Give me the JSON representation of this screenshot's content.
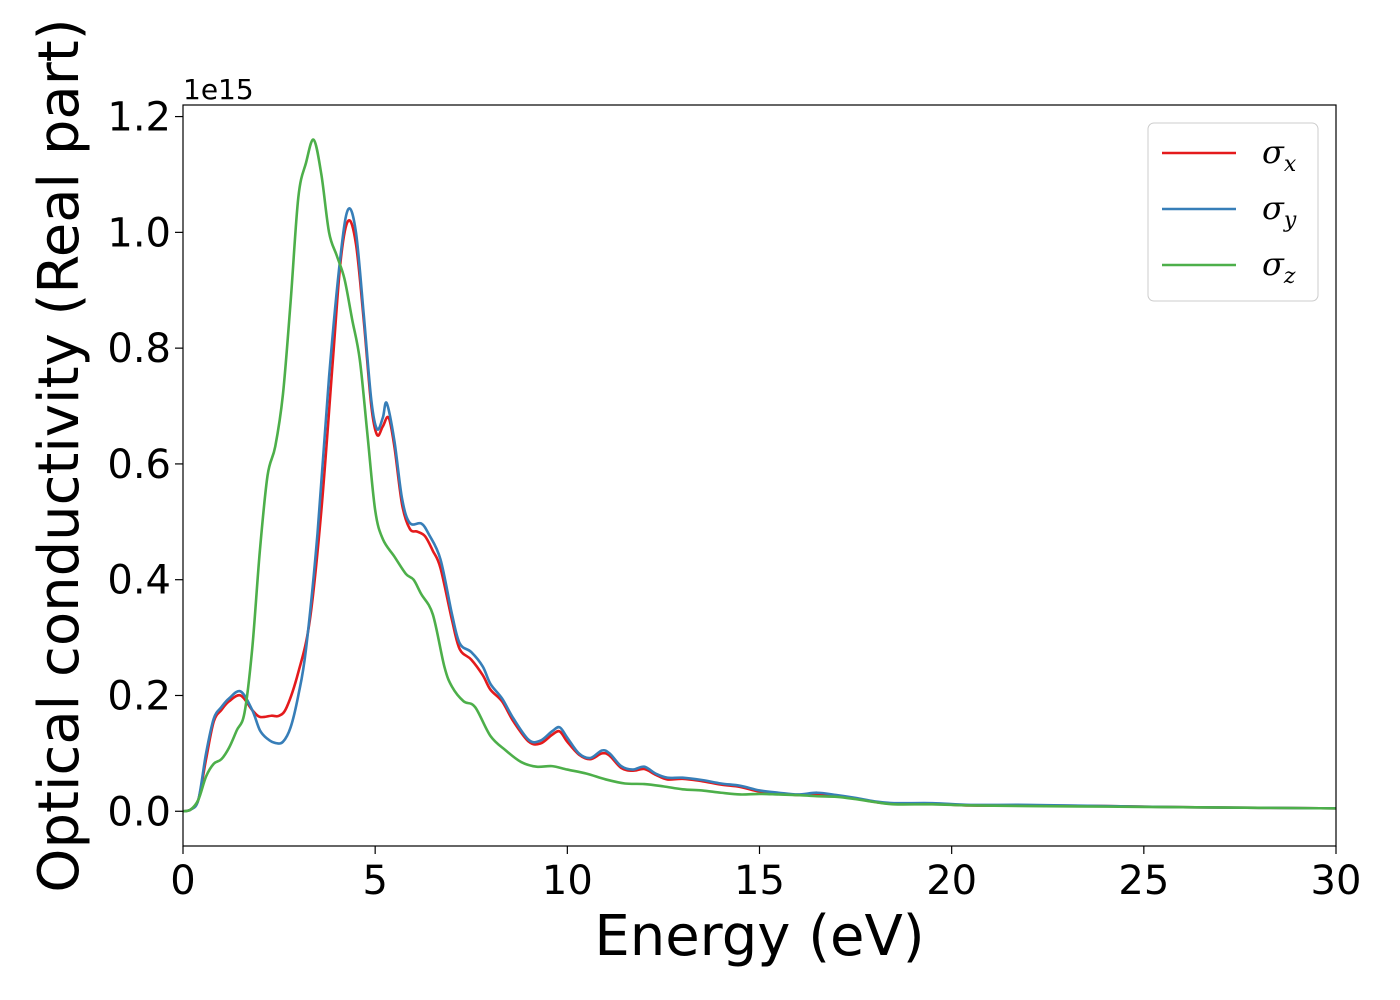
{
  "chart_data": {
    "type": "line",
    "xlabel": "Energy (eV)",
    "ylabel": "Optical conductivity (Real part)",
    "y_offset_text": "1e15",
    "y_scale": 1000000000000000.0,
    "xlim": [
      0,
      30
    ],
    "ylim": [
      -0.06,
      1.22
    ],
    "x_ticks": [
      0,
      5,
      10,
      15,
      20,
      25,
      30
    ],
    "x_tick_labels": [
      "0",
      "5",
      "10",
      "15",
      "20",
      "25",
      "30"
    ],
    "y_ticks": [
      0.0,
      0.2,
      0.4,
      0.6,
      0.8,
      1.0,
      1.2
    ],
    "y_tick_labels": [
      "0.0",
      "0.2",
      "0.4",
      "0.6",
      "0.8",
      "1.0",
      "1.2"
    ],
    "grid": false,
    "legend_position": "top-right",
    "series": [
      {
        "name": "σx",
        "symbol": "σ",
        "subscript": "x",
        "color": "#e41a1c",
        "points": [
          [
            0,
            0
          ],
          [
            0.2,
            0.003
          ],
          [
            0.4,
            0.02
          ],
          [
            0.6,
            0.09
          ],
          [
            0.8,
            0.155
          ],
          [
            1.0,
            0.175
          ],
          [
            1.2,
            0.19
          ],
          [
            1.5,
            0.2
          ],
          [
            1.8,
            0.175
          ],
          [
            2.0,
            0.163
          ],
          [
            2.3,
            0.165
          ],
          [
            2.5,
            0.165
          ],
          [
            2.7,
            0.18
          ],
          [
            3.0,
            0.24
          ],
          [
            3.3,
            0.33
          ],
          [
            3.6,
            0.52
          ],
          [
            3.9,
            0.78
          ],
          [
            4.1,
            0.95
          ],
          [
            4.3,
            1.02
          ],
          [
            4.5,
            0.98
          ],
          [
            4.7,
            0.85
          ],
          [
            4.9,
            0.7
          ],
          [
            5.05,
            0.65
          ],
          [
            5.2,
            0.665
          ],
          [
            5.35,
            0.68
          ],
          [
            5.5,
            0.63
          ],
          [
            5.7,
            0.53
          ],
          [
            5.9,
            0.488
          ],
          [
            6.1,
            0.483
          ],
          [
            6.3,
            0.475
          ],
          [
            6.5,
            0.45
          ],
          [
            6.7,
            0.42
          ],
          [
            7.0,
            0.33
          ],
          [
            7.2,
            0.28
          ],
          [
            7.5,
            0.262
          ],
          [
            7.8,
            0.235
          ],
          [
            8.0,
            0.21
          ],
          [
            8.3,
            0.19
          ],
          [
            8.6,
            0.155
          ],
          [
            9.0,
            0.12
          ],
          [
            9.3,
            0.117
          ],
          [
            9.6,
            0.132
          ],
          [
            9.8,
            0.138
          ],
          [
            10.0,
            0.12
          ],
          [
            10.3,
            0.098
          ],
          [
            10.6,
            0.09
          ],
          [
            10.9,
            0.1
          ],
          [
            11.1,
            0.096
          ],
          [
            11.4,
            0.075
          ],
          [
            11.7,
            0.07
          ],
          [
            12.0,
            0.073
          ],
          [
            12.3,
            0.063
          ],
          [
            12.6,
            0.055
          ],
          [
            13.0,
            0.056
          ],
          [
            13.5,
            0.052
          ],
          [
            14.0,
            0.046
          ],
          [
            14.5,
            0.042
          ],
          [
            15.0,
            0.034
          ],
          [
            15.5,
            0.031
          ],
          [
            16.0,
            0.028
          ],
          [
            16.5,
            0.03
          ],
          [
            17.0,
            0.027
          ],
          [
            17.5,
            0.022
          ],
          [
            18.0,
            0.016
          ],
          [
            18.5,
            0.013
          ],
          [
            19.5,
            0.013
          ],
          [
            20.5,
            0.01
          ],
          [
            22.0,
            0.01
          ],
          [
            24.0,
            0.009
          ],
          [
            26.0,
            0.007
          ],
          [
            28.0,
            0.006
          ],
          [
            30.0,
            0.005
          ]
        ]
      },
      {
        "name": "σy",
        "symbol": "σ",
        "subscript": "y",
        "color": "#377eb8",
        "points": [
          [
            0,
            0
          ],
          [
            0.2,
            0.003
          ],
          [
            0.4,
            0.02
          ],
          [
            0.6,
            0.1
          ],
          [
            0.8,
            0.16
          ],
          [
            1.0,
            0.18
          ],
          [
            1.2,
            0.195
          ],
          [
            1.5,
            0.207
          ],
          [
            1.8,
            0.175
          ],
          [
            2.0,
            0.14
          ],
          [
            2.2,
            0.125
          ],
          [
            2.4,
            0.118
          ],
          [
            2.6,
            0.12
          ],
          [
            2.8,
            0.145
          ],
          [
            3.0,
            0.2
          ],
          [
            3.2,
            0.28
          ],
          [
            3.5,
            0.48
          ],
          [
            3.8,
            0.75
          ],
          [
            4.1,
            0.96
          ],
          [
            4.3,
            1.04
          ],
          [
            4.5,
            1.0
          ],
          [
            4.7,
            0.86
          ],
          [
            4.9,
            0.71
          ],
          [
            5.05,
            0.66
          ],
          [
            5.2,
            0.68
          ],
          [
            5.3,
            0.705
          ],
          [
            5.5,
            0.64
          ],
          [
            5.7,
            0.54
          ],
          [
            5.9,
            0.498
          ],
          [
            6.2,
            0.497
          ],
          [
            6.4,
            0.478
          ],
          [
            6.7,
            0.435
          ],
          [
            7.0,
            0.34
          ],
          [
            7.2,
            0.29
          ],
          [
            7.5,
            0.275
          ],
          [
            7.8,
            0.25
          ],
          [
            8.0,
            0.22
          ],
          [
            8.3,
            0.195
          ],
          [
            8.6,
            0.16
          ],
          [
            9.0,
            0.123
          ],
          [
            9.3,
            0.122
          ],
          [
            9.6,
            0.138
          ],
          [
            9.8,
            0.145
          ],
          [
            10.0,
            0.127
          ],
          [
            10.3,
            0.1
          ],
          [
            10.6,
            0.092
          ],
          [
            10.9,
            0.105
          ],
          [
            11.1,
            0.1
          ],
          [
            11.4,
            0.078
          ],
          [
            11.7,
            0.072
          ],
          [
            12.0,
            0.077
          ],
          [
            12.3,
            0.065
          ],
          [
            12.6,
            0.058
          ],
          [
            13.0,
            0.058
          ],
          [
            13.5,
            0.054
          ],
          [
            14.0,
            0.048
          ],
          [
            14.5,
            0.044
          ],
          [
            15.0,
            0.036
          ],
          [
            15.5,
            0.032
          ],
          [
            16.0,
            0.029
          ],
          [
            16.5,
            0.032
          ],
          [
            17.0,
            0.028
          ],
          [
            17.5,
            0.023
          ],
          [
            18.0,
            0.017
          ],
          [
            18.5,
            0.014
          ],
          [
            19.5,
            0.014
          ],
          [
            20.5,
            0.011
          ],
          [
            22.0,
            0.011
          ],
          [
            24.0,
            0.009
          ],
          [
            26.0,
            0.007
          ],
          [
            28.0,
            0.006
          ],
          [
            30.0,
            0.005
          ]
        ]
      },
      {
        "name": "σz",
        "symbol": "σ",
        "subscript": "z",
        "color": "#4daf4a",
        "points": [
          [
            0,
            0
          ],
          [
            0.2,
            0.003
          ],
          [
            0.4,
            0.02
          ],
          [
            0.6,
            0.06
          ],
          [
            0.8,
            0.082
          ],
          [
            1.0,
            0.09
          ],
          [
            1.2,
            0.11
          ],
          [
            1.4,
            0.14
          ],
          [
            1.6,
            0.17
          ],
          [
            1.8,
            0.28
          ],
          [
            2.0,
            0.45
          ],
          [
            2.2,
            0.58
          ],
          [
            2.4,
            0.63
          ],
          [
            2.6,
            0.72
          ],
          [
            2.8,
            0.88
          ],
          [
            3.0,
            1.06
          ],
          [
            3.2,
            1.12
          ],
          [
            3.4,
            1.16
          ],
          [
            3.6,
            1.1
          ],
          [
            3.8,
            1.0
          ],
          [
            4.0,
            0.96
          ],
          [
            4.2,
            0.92
          ],
          [
            4.4,
            0.85
          ],
          [
            4.6,
            0.78
          ],
          [
            4.8,
            0.65
          ],
          [
            5.0,
            0.52
          ],
          [
            5.2,
            0.47
          ],
          [
            5.5,
            0.44
          ],
          [
            5.8,
            0.41
          ],
          [
            6.0,
            0.4
          ],
          [
            6.2,
            0.375
          ],
          [
            6.5,
            0.34
          ],
          [
            6.8,
            0.25
          ],
          [
            7.0,
            0.215
          ],
          [
            7.3,
            0.19
          ],
          [
            7.6,
            0.18
          ],
          [
            8.0,
            0.13
          ],
          [
            8.4,
            0.105
          ],
          [
            8.8,
            0.085
          ],
          [
            9.2,
            0.077
          ],
          [
            9.6,
            0.078
          ],
          [
            10.0,
            0.072
          ],
          [
            10.5,
            0.065
          ],
          [
            11.0,
            0.055
          ],
          [
            11.5,
            0.048
          ],
          [
            12.0,
            0.047
          ],
          [
            12.5,
            0.043
          ],
          [
            13.0,
            0.038
          ],
          [
            13.5,
            0.036
          ],
          [
            14.0,
            0.032
          ],
          [
            14.5,
            0.029
          ],
          [
            15.0,
            0.03
          ],
          [
            15.5,
            0.029
          ],
          [
            16.0,
            0.028
          ],
          [
            16.5,
            0.026
          ],
          [
            17.0,
            0.025
          ],
          [
            17.5,
            0.021
          ],
          [
            18.0,
            0.016
          ],
          [
            18.5,
            0.012
          ],
          [
            19.5,
            0.012
          ],
          [
            20.5,
            0.01
          ],
          [
            22.0,
            0.009
          ],
          [
            24.0,
            0.008
          ],
          [
            26.0,
            0.007
          ],
          [
            28.0,
            0.006
          ],
          [
            30.0,
            0.005
          ]
        ]
      }
    ]
  }
}
